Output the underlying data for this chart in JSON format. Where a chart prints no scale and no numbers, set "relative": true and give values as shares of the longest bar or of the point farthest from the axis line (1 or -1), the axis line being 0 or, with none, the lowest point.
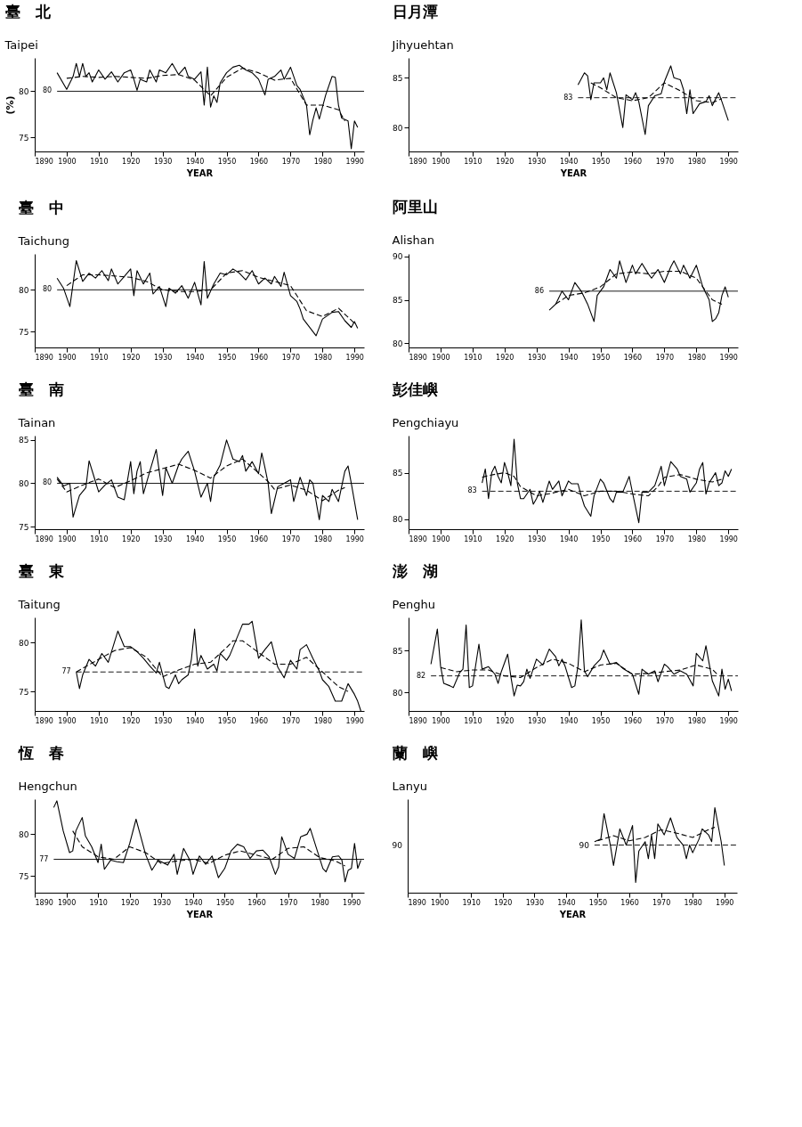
{
  "chart_data": [
    {
      "type": "line",
      "title": "臺　北",
      "subtitle": "Taipei",
      "xlabel": "YEAR",
      "ylabel": "(%)",
      "xlim": [
        1890,
        1993
      ],
      "xticks": [
        1890,
        1900,
        1910,
        1920,
        1930,
        1940,
        1950,
        1960,
        1970,
        1980,
        1990
      ],
      "ylim": [
        73.5,
        83.6
      ],
      "yticks": [
        75,
        80
      ],
      "ref_lines": [
        {
          "axis": "y",
          "value": 80,
          "label": "80",
          "line_style": "solid"
        }
      ],
      "series": [
        {
          "color": "#000000",
          "line_style": "solid",
          "x": [
            1897,
            1900,
            1902,
            1903,
            1904,
            1905,
            1906,
            1907,
            1908,
            1910,
            1912,
            1914,
            1916,
            1918,
            1920,
            1921,
            1922,
            1923,
            1925,
            1926,
            1928,
            1929,
            1931,
            1933,
            1935,
            1937,
            1938,
            1940,
            1942,
            1943,
            1944,
            1945,
            1946,
            1947,
            1948,
            1950,
            1952,
            1954,
            1956,
            1958,
            1960,
            1962,
            1963,
            1965,
            1967,
            1968,
            1970,
            1972,
            1973,
            1975,
            1976,
            1977,
            1978,
            1979,
            1981,
            1983,
            1984,
            1985,
            1986,
            1988,
            1989,
            1990,
            1991
          ],
          "values": [
            82.0,
            80.2,
            81.6,
            83.0,
            81.6,
            83.0,
            81.6,
            82.0,
            81.0,
            82.3,
            81.3,
            82.1,
            81.0,
            82.0,
            82.3,
            81.3,
            80.1,
            81.3,
            81.0,
            82.3,
            81.0,
            82.3,
            82.0,
            83.0,
            81.8,
            82.6,
            81.6,
            81.3,
            82.1,
            78.5,
            82.6,
            78.3,
            79.5,
            78.8,
            80.9,
            82.0,
            82.6,
            82.8,
            82.3,
            82.0,
            81.3,
            79.6,
            81.3,
            81.6,
            82.3,
            81.3,
            82.6,
            80.6,
            80.2,
            78.5,
            75.3,
            76.9,
            78.2,
            77.0,
            79.6,
            81.6,
            81.5,
            78.5,
            77.1,
            76.8,
            73.8,
            76.8,
            76.1
          ]
        },
        {
          "color": "#000000",
          "line_style": "dashed",
          "x": [
            1900,
            1905,
            1910,
            1915,
            1920,
            1925,
            1930,
            1935,
            1940,
            1945,
            1950,
            1955,
            1960,
            1965,
            1970,
            1975,
            1980,
            1985,
            1987
          ],
          "values": [
            81.4,
            81.6,
            81.5,
            81.6,
            81.5,
            81.4,
            81.7,
            81.8,
            81.2,
            79.5,
            81.5,
            82.5,
            82.0,
            81.2,
            81.4,
            78.5,
            78.5,
            78.0,
            76.8
          ]
        }
      ]
    },
    {
      "type": "line",
      "title": "日月潭",
      "subtitle": "Jihyuehtan",
      "xlabel": "YEAR",
      "xlim": [
        1890,
        1993
      ],
      "xticks": [
        1890,
        1900,
        1910,
        1920,
        1930,
        1940,
        1950,
        1960,
        1970,
        1980,
        1990
      ],
      "ylim": [
        77.6,
        87
      ],
      "yticks": [
        80,
        85
      ],
      "ref_lines": [
        {
          "axis": "y",
          "value": 83,
          "label": "83",
          "line_style": "dashed"
        }
      ],
      "series": [
        {
          "color": "#000000",
          "line_style": "solid",
          "x": [
            1943,
            1945,
            1946,
            1947,
            1948,
            1950,
            1951,
            1952,
            1953,
            1955,
            1957,
            1958,
            1960,
            1961,
            1962,
            1964,
            1965,
            1967,
            1969,
            1970,
            1972,
            1973,
            1975,
            1976,
            1977,
            1978,
            1979,
            1981,
            1983,
            1984,
            1985,
            1987,
            1988,
            1990
          ],
          "values": [
            84.3,
            85.5,
            85.2,
            82.8,
            84.5,
            84.5,
            85.0,
            83.8,
            85.5,
            83.5,
            80.0,
            83.3,
            82.8,
            83.5,
            82.6,
            79.3,
            82.2,
            83.2,
            83.4,
            84.6,
            86.2,
            85.0,
            84.8,
            83.8,
            81.4,
            83.8,
            81.4,
            82.4,
            82.6,
            83.2,
            82.2,
            83.5,
            82.6,
            80.7
          ]
        },
        {
          "color": "#000000",
          "line_style": "dashed",
          "x": [
            1947,
            1950,
            1955,
            1960,
            1965,
            1970,
            1975,
            1980,
            1985,
            1988
          ],
          "values": [
            84.5,
            84.0,
            83.0,
            82.7,
            83.0,
            84.5,
            83.7,
            82.7,
            82.5,
            82.9
          ]
        }
      ]
    },
    {
      "type": "line",
      "title": "臺　中",
      "subtitle": "Taichung",
      "xlim": [
        1890,
        1993
      ],
      "xticks": [
        1890,
        1900,
        1910,
        1920,
        1930,
        1940,
        1950,
        1960,
        1970,
        1980,
        1990
      ],
      "ylim": [
        73.1,
        84.3
      ],
      "yticks": [
        75,
        80
      ],
      "ref_lines": [
        {
          "axis": "y",
          "value": 80,
          "label": "80",
          "line_style": "solid"
        }
      ],
      "series": [
        {
          "color": "#000000",
          "line_style": "solid",
          "x": [
            1897,
            1899,
            1901,
            1903,
            1905,
            1907,
            1909,
            1911,
            1913,
            1914,
            1916,
            1918,
            1920,
            1921,
            1922,
            1924,
            1926,
            1927,
            1929,
            1931,
            1932,
            1934,
            1936,
            1938,
            1940,
            1942,
            1943,
            1944,
            1946,
            1948,
            1950,
            1952,
            1954,
            1956,
            1958,
            1960,
            1962,
            1964,
            1965,
            1967,
            1968,
            1970,
            1972,
            1973,
            1974,
            1978,
            1980,
            1983,
            1985,
            1987,
            1989,
            1990,
            1991
          ],
          "values": [
            81.4,
            80.2,
            78.0,
            83.5,
            81.0,
            82.0,
            81.4,
            82.3,
            81.1,
            82.5,
            80.7,
            81.6,
            82.5,
            79.3,
            82.3,
            80.7,
            82.0,
            79.5,
            80.4,
            78.0,
            80.2,
            79.6,
            80.5,
            79.0,
            80.9,
            78.2,
            83.4,
            79.0,
            80.7,
            82.0,
            81.8,
            82.5,
            82.0,
            81.2,
            82.3,
            80.7,
            81.4,
            80.7,
            81.6,
            80.4,
            82.1,
            79.3,
            78.6,
            77.7,
            76.5,
            74.5,
            76.5,
            77.3,
            77.4,
            76.3,
            75.5,
            76.2,
            75.4
          ]
        },
        {
          "color": "#000000",
          "line_style": "dashed",
          "x": [
            1900,
            1905,
            1910,
            1920,
            1925,
            1930,
            1935,
            1940,
            1945,
            1950,
            1955,
            1960,
            1965,
            1970,
            1975,
            1980,
            1985,
            1990
          ],
          "values": [
            80.5,
            81.8,
            81.8,
            81.5,
            81.0,
            80.0,
            79.8,
            79.8,
            80.0,
            82.0,
            82.3,
            81.5,
            81.0,
            80.5,
            77.5,
            76.8,
            77.8,
            76.0
          ]
        }
      ]
    },
    {
      "type": "line",
      "title": "阿里山",
      "subtitle": "Alishan",
      "xlim": [
        1890,
        1993
      ],
      "xticks": [
        1890,
        1900,
        1910,
        1920,
        1930,
        1940,
        1950,
        1960,
        1970,
        1980,
        1990
      ],
      "ylim": [
        79.5,
        90.3
      ],
      "yticks": [
        80,
        85,
        90
      ],
      "ref_lines": [
        {
          "axis": "y",
          "value": 86,
          "label": "86",
          "line_style": "solid"
        }
      ],
      "series": [
        {
          "color": "#000000",
          "line_style": "solid",
          "x": [
            1934,
            1936,
            1938,
            1940,
            1942,
            1944,
            1946,
            1948,
            1949,
            1951,
            1953,
            1955,
            1956,
            1958,
            1960,
            1961,
            1963,
            1965,
            1966,
            1968,
            1970,
            1972,
            1973,
            1975,
            1976,
            1978,
            1980,
            1982,
            1984,
            1985,
            1986,
            1987,
            1988,
            1989,
            1990
          ],
          "values": [
            83.8,
            84.5,
            86.0,
            85.0,
            87.0,
            86.0,
            84.5,
            82.5,
            85.5,
            86.5,
            88.5,
            87.5,
            89.5,
            87.0,
            89.0,
            88.0,
            89.2,
            88.0,
            87.5,
            88.5,
            87.0,
            88.8,
            89.5,
            88.0,
            89.0,
            87.5,
            89.0,
            86.5,
            85.0,
            82.5,
            82.8,
            83.5,
            85.5,
            86.5,
            85.3
          ]
        },
        {
          "color": "#000000",
          "line_style": "dashed",
          "x": [
            1936,
            1940,
            1945,
            1950,
            1955,
            1960,
            1965,
            1970,
            1975,
            1980,
            1985,
            1988
          ],
          "values": [
            84.5,
            85.5,
            85.8,
            86.5,
            88.0,
            88.2,
            88.0,
            88.3,
            88.3,
            87.5,
            85.0,
            84.5
          ]
        }
      ]
    },
    {
      "type": "line",
      "title": "臺　南",
      "subtitle": "Tainan",
      "xlim": [
        1890,
        1993
      ],
      "xticks": [
        1890,
        1900,
        1910,
        1920,
        1930,
        1940,
        1950,
        1960,
        1970,
        1980,
        1990
      ],
      "ylim": [
        74.7,
        85.5
      ],
      "yticks": [
        75,
        80,
        85
      ],
      "ref_lines": [
        {
          "axis": "y",
          "value": 80,
          "label": "80",
          "line_style": "solid"
        }
      ],
      "series": [
        {
          "color": "#000000",
          "line_style": "solid",
          "x": [
            1897,
            1899,
            1901,
            1902,
            1904,
            1906,
            1907,
            1909,
            1910,
            1912,
            1914,
            1916,
            1918,
            1920,
            1921,
            1922,
            1923,
            1924,
            1926,
            1928,
            1930,
            1931,
            1933,
            1935,
            1936,
            1938,
            1940,
            1942,
            1944,
            1945,
            1946,
            1948,
            1950,
            1952,
            1954,
            1955,
            1956,
            1958,
            1960,
            1961,
            1962,
            1963,
            1964,
            1966,
            1968,
            1970,
            1971,
            1973,
            1975,
            1976,
            1977,
            1979,
            1980,
            1982,
            1983,
            1985,
            1987,
            1988,
            1989,
            1990,
            1991
          ],
          "values": [
            80.7,
            79.7,
            80.0,
            76.1,
            78.6,
            79.5,
            82.6,
            80.2,
            79.0,
            79.8,
            80.4,
            78.4,
            78.1,
            82.5,
            78.8,
            81.4,
            82.5,
            78.8,
            81.4,
            83.9,
            78.6,
            81.8,
            80.0,
            82.1,
            82.8,
            83.7,
            81.4,
            78.4,
            80.0,
            77.9,
            80.7,
            82.1,
            85.0,
            82.8,
            82.5,
            83.2,
            81.4,
            82.5,
            81.1,
            83.5,
            81.8,
            80.0,
            76.5,
            79.6,
            80.0,
            80.4,
            77.9,
            80.7,
            78.6,
            80.4,
            80.0,
            75.8,
            78.6,
            77.9,
            79.3,
            77.9,
            81.4,
            82.0,
            80.0,
            77.9,
            75.8
          ]
        },
        {
          "color": "#000000",
          "line_style": "dashed",
          "x": [
            1897,
            1900,
            1905,
            1910,
            1915,
            1920,
            1925,
            1930,
            1935,
            1940,
            1945,
            1950,
            1955,
            1960,
            1963,
            1965,
            1970,
            1975,
            1980,
            1985,
            1987
          ],
          "values": [
            80.5,
            79.0,
            79.8,
            80.5,
            79.5,
            80.3,
            81.2,
            81.7,
            82.2,
            81.5,
            80.6,
            82.0,
            82.8,
            81.2,
            80.2,
            79.3,
            79.8,
            79.2,
            78.0,
            79.2,
            79.5
          ]
        }
      ]
    },
    {
      "type": "line",
      "title": "彭佳嶼",
      "subtitle": "Pengchiayu",
      "xlim": [
        1890,
        1993
      ],
      "xticks": [
        1890,
        1900,
        1910,
        1920,
        1930,
        1940,
        1950,
        1960,
        1970,
        1980,
        1990
      ],
      "ylim": [
        78.9,
        89
      ],
      "yticks": [
        80,
        85
      ],
      "ref_lines": [
        {
          "axis": "y",
          "value": 83,
          "label": "83",
          "line_style": "dashed"
        }
      ],
      "series": [
        {
          "color": "#000000",
          "line_style": "solid",
          "x": [
            1913,
            1914,
            1915,
            1916,
            1917,
            1918,
            1919,
            1920,
            1921,
            1922,
            1923,
            1924,
            1925,
            1926,
            1928,
            1929,
            1930,
            1931,
            1932,
            1934,
            1935,
            1937,
            1938,
            1940,
            1941,
            1943,
            1944,
            1945,
            1947,
            1948,
            1950,
            1951,
            1953,
            1954,
            1955,
            1957,
            1959,
            1960,
            1962,
            1963,
            1965,
            1967,
            1969,
            1970,
            1972,
            1974,
            1975,
            1977,
            1978,
            1980,
            1981,
            1982,
            1983,
            1984,
            1986,
            1987,
            1988,
            1989,
            1990,
            1991
          ],
          "values": [
            83.9,
            85.4,
            82.2,
            85.0,
            85.7,
            84.6,
            83.9,
            86.1,
            85.0,
            83.6,
            88.6,
            83.9,
            82.2,
            82.2,
            83.2,
            81.6,
            82.2,
            83.0,
            81.8,
            84.1,
            83.2,
            84.1,
            82.5,
            84.1,
            83.8,
            83.8,
            82.5,
            81.4,
            80.3,
            82.5,
            84.3,
            83.9,
            82.2,
            81.8,
            82.9,
            82.9,
            84.6,
            82.9,
            79.6,
            82.9,
            82.9,
            83.6,
            85.7,
            83.6,
            86.2,
            85.4,
            84.6,
            84.3,
            82.9,
            83.9,
            85.4,
            86.1,
            82.7,
            83.9,
            85.0,
            83.6,
            83.9,
            85.2,
            84.6,
            85.4
          ]
        },
        {
          "color": "#000000",
          "line_style": "dashed",
          "x": [
            1913,
            1915,
            1920,
            1923,
            1925,
            1930,
            1935,
            1940,
            1945,
            1950,
            1955,
            1960,
            1965,
            1968,
            1970,
            1975,
            1980,
            1985,
            1988
          ],
          "values": [
            84.5,
            84.7,
            85.0,
            84.6,
            83.5,
            82.5,
            82.8,
            83.2,
            82.5,
            83.0,
            83.0,
            82.7,
            82.5,
            83.5,
            84.5,
            84.8,
            84.3,
            84.0,
            84.3
          ]
        }
      ]
    },
    {
      "type": "line",
      "title": "臺　東",
      "subtitle": "Taitung",
      "xlim": [
        1890,
        1993
      ],
      "xticks": [
        1890,
        1900,
        1910,
        1920,
        1930,
        1940,
        1950,
        1960,
        1970,
        1980,
        1990
      ],
      "ylim": [
        73,
        82.6
      ],
      "yticks": [
        75,
        80
      ],
      "ref_lines": [
        {
          "axis": "y",
          "value": 77,
          "label": "77",
          "line_style": "dashed"
        }
      ],
      "series": [
        {
          "color": "#000000",
          "line_style": "solid",
          "x": [
            1903,
            1904,
            1905,
            1907,
            1909,
            1911,
            1913,
            1916,
            1918,
            1920,
            1922,
            1924,
            1926,
            1928,
            1929,
            1931,
            1932,
            1934,
            1935,
            1936,
            1938,
            1939,
            1940,
            1941,
            1942,
            1944,
            1946,
            1947,
            1948,
            1950,
            1951,
            1953,
            1955,
            1957,
            1958,
            1960,
            1962,
            1964,
            1966,
            1968,
            1970,
            1972,
            1973,
            1975,
            1977,
            1979,
            1980,
            1982,
            1984,
            1986,
            1988,
            1990,
            1991,
            1992
          ],
          "values": [
            77.0,
            75.3,
            76.7,
            78.3,
            77.6,
            78.9,
            78.0,
            81.2,
            79.6,
            79.6,
            79.1,
            78.4,
            77.6,
            76.9,
            78.0,
            75.5,
            75.3,
            76.7,
            75.8,
            76.2,
            76.7,
            78.3,
            81.4,
            77.6,
            78.7,
            77.3,
            77.8,
            77.1,
            78.9,
            78.2,
            78.7,
            80.3,
            81.9,
            81.9,
            82.2,
            78.4,
            79.3,
            80.1,
            77.5,
            76.4,
            78.2,
            77.3,
            79.3,
            79.8,
            78.4,
            77.1,
            76.2,
            75.5,
            74.0,
            74.0,
            75.8,
            74.7,
            74.0,
            73.0
          ]
        },
        {
          "color": "#000000",
          "line_style": "dashed",
          "x": [
            1903,
            1910,
            1915,
            1920,
            1925,
            1930,
            1935,
            1940,
            1945,
            1950,
            1952,
            1955,
            1960,
            1965,
            1970,
            1975,
            1980,
            1985,
            1988
          ],
          "values": [
            77.0,
            78.3,
            79.2,
            79.5,
            78.5,
            76.5,
            77.2,
            77.8,
            78.0,
            79.5,
            80.2,
            80.2,
            79.0,
            77.8,
            77.8,
            78.5,
            77.0,
            75.5,
            75.0
          ]
        }
      ]
    },
    {
      "type": "line",
      "title": "澎　湖",
      "subtitle": "Penghu",
      "xlim": [
        1890,
        1993
      ],
      "xticks": [
        1890,
        1900,
        1910,
        1920,
        1930,
        1940,
        1950,
        1960,
        1970,
        1980,
        1990
      ],
      "ylim": [
        77.8,
        89
      ],
      "yticks": [
        80,
        85
      ],
      "ref_lines": [
        {
          "axis": "y",
          "value": 82,
          "label": "82",
          "line_style": "dashed"
        }
      ],
      "series": [
        {
          "color": "#000000",
          "line_style": "solid",
          "x": [
            1897,
            1899,
            1900,
            1901,
            1903,
            1904,
            1906,
            1907,
            1908,
            1909,
            1910,
            1912,
            1913,
            1915,
            1917,
            1918,
            1919,
            1921,
            1922,
            1923,
            1924,
            1925,
            1926,
            1927,
            1928,
            1930,
            1932,
            1934,
            1936,
            1937,
            1938,
            1939,
            1941,
            1942,
            1943,
            1944,
            1945,
            1946,
            1948,
            1950,
            1951,
            1953,
            1955,
            1957,
            1960,
            1962,
            1963,
            1965,
            1967,
            1968,
            1970,
            1971,
            1973,
            1975,
            1977,
            1979,
            1980,
            1982,
            1983,
            1985,
            1987,
            1988,
            1989,
            1990,
            1991
          ],
          "values": [
            83.4,
            87.6,
            83.2,
            81.1,
            80.8,
            80.6,
            82.4,
            82.8,
            88.1,
            80.6,
            80.8,
            85.8,
            82.8,
            83.1,
            82.2,
            81.1,
            82.5,
            84.6,
            81.9,
            79.6,
            80.9,
            80.8,
            81.3,
            82.8,
            81.7,
            84.0,
            83.3,
            85.2,
            84.3,
            83.2,
            84.0,
            83.1,
            80.6,
            80.8,
            83.2,
            88.7,
            82.6,
            81.9,
            83.2,
            84.0,
            85.1,
            83.4,
            83.6,
            82.9,
            82.2,
            79.8,
            82.8,
            82.2,
            82.6,
            81.3,
            83.4,
            83.1,
            82.2,
            82.6,
            82.2,
            80.8,
            84.7,
            83.8,
            85.6,
            81.4,
            79.6,
            82.8,
            80.4,
            81.6,
            80.2
          ]
        },
        {
          "color": "#000000",
          "line_style": "dashed",
          "x": [
            1900,
            1905,
            1910,
            1915,
            1920,
            1925,
            1930,
            1935,
            1940,
            1945,
            1950,
            1955,
            1960,
            1965,
            1970,
            1975,
            1980,
            1985,
            1987
          ],
          "values": [
            83.0,
            82.5,
            82.7,
            82.7,
            82.0,
            81.8,
            83.0,
            84.0,
            83.5,
            82.5,
            83.3,
            83.5,
            82.2,
            82.3,
            82.5,
            82.7,
            83.3,
            82.8,
            82.0
          ]
        }
      ]
    },
    {
      "type": "line",
      "title": "恆　春",
      "subtitle": "Hengchun",
      "xlabel": "YEAR",
      "xlim": [
        1890,
        1994
      ],
      "xticks": [
        1890,
        1900,
        1910,
        1920,
        1930,
        1940,
        1950,
        1960,
        1970,
        1980,
        1990
      ],
      "ylim": [
        73,
        84.2
      ],
      "yticks": [
        75,
        80
      ],
      "ref_lines": [
        {
          "axis": "y",
          "value": 77,
          "label": "77",
          "line_style": "solid"
        }
      ],
      "series": [
        {
          "color": "#000000",
          "line_style": "solid",
          "x": [
            1896,
            1897,
            1899,
            1901,
            1902,
            1903,
            1905,
            1906,
            1908,
            1910,
            1911,
            1912,
            1914,
            1916,
            1918,
            1920,
            1922,
            1923,
            1925,
            1927,
            1929,
            1932,
            1934,
            1935,
            1937,
            1939,
            1940,
            1942,
            1944,
            1946,
            1948,
            1950,
            1952,
            1954,
            1956,
            1958,
            1960,
            1962,
            1964,
            1966,
            1967,
            1968,
            1970,
            1972,
            1974,
            1976,
            1977,
            1979,
            1981,
            1982,
            1984,
            1986,
            1987,
            1988,
            1989,
            1990,
            1991,
            1992,
            1993
          ],
          "values": [
            83.2,
            84.0,
            80.4,
            77.8,
            78.0,
            80.4,
            82.0,
            79.8,
            78.5,
            76.6,
            78.8,
            75.8,
            76.9,
            76.7,
            76.6,
            78.9,
            81.8,
            80.4,
            77.6,
            75.7,
            76.9,
            76.3,
            77.6,
            75.2,
            78.3,
            76.9,
            75.2,
            77.4,
            76.4,
            77.4,
            74.8,
            75.9,
            78.0,
            78.8,
            78.5,
            77.1,
            78.0,
            78.1,
            77.3,
            75.2,
            76.1,
            79.7,
            77.6,
            77.1,
            79.7,
            80.0,
            80.7,
            78.3,
            75.9,
            75.5,
            77.3,
            77.4,
            76.9,
            74.3,
            75.7,
            75.9,
            78.9,
            75.9,
            76.9
          ]
        },
        {
          "color": "#000000",
          "line_style": "dashed",
          "x": [
            1902,
            1905,
            1910,
            1915,
            1920,
            1925,
            1930,
            1935,
            1940,
            1945,
            1950,
            1955,
            1960,
            1965,
            1970,
            1975,
            1980,
            1985,
            1988
          ],
          "values": [
            80.4,
            78.5,
            77.3,
            77.0,
            78.5,
            77.8,
            76.5,
            76.8,
            77.0,
            76.5,
            77.5,
            78.0,
            77.5,
            77.0,
            78.3,
            78.5,
            77.2,
            76.8,
            76.2
          ]
        }
      ]
    },
    {
      "type": "line",
      "title": "蘭　嶼",
      "subtitle": "Lanyu",
      "xlabel": "YEAR",
      "xlim": [
        1890,
        1994
      ],
      "xticks": [
        1890,
        1900,
        1910,
        1920,
        1930,
        1940,
        1950,
        1960,
        1970,
        1980,
        1990
      ],
      "relative": true,
      "annotations": [
        "90",
        "90"
      ],
      "ref_lines": [
        {
          "axis": "y",
          "value": 0.56,
          "line_style": "dashed"
        }
      ],
      "series": [
        {
          "color": "#000000",
          "line_style": "solid",
          "x": [
            1949,
            1951,
            1952,
            1954,
            1955,
            1957,
            1959,
            1961,
            1962,
            1963,
            1965,
            1966,
            1967,
            1968,
            1969,
            1971,
            1973,
            1975,
            1977,
            1978,
            1979,
            1980,
            1982,
            1983,
            1985,
            1986,
            1987,
            1989,
            1990
          ],
          "values": [
            0.6,
            0.63,
            0.93,
            0.56,
            0.32,
            0.75,
            0.56,
            0.79,
            0.12,
            0.49,
            0.6,
            0.4,
            0.68,
            0.4,
            0.81,
            0.68,
            0.88,
            0.65,
            0.56,
            0.4,
            0.56,
            0.47,
            0.63,
            0.75,
            0.68,
            0.6,
            1,
            0.6,
            0.32
          ]
        },
        {
          "color": "#000000",
          "line_style": "dashed",
          "x": [
            1950,
            1955,
            1960,
            1965,
            1970,
            1975,
            1980,
            1985,
            1987
          ],
          "values": [
            0.61,
            0.67,
            0.61,
            0.65,
            0.74,
            0.7,
            0.65,
            0.74,
            0.77
          ]
        }
      ]
    }
  ]
}
